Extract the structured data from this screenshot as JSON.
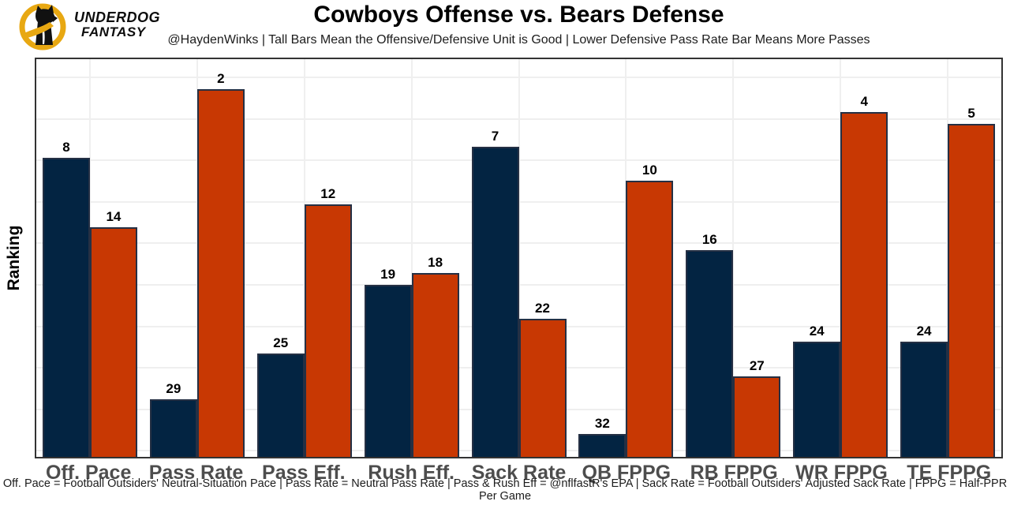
{
  "header": {
    "brand_line1": "UNDERDOG",
    "brand_line2": "FANTASY",
    "title": "Cowboys Offense vs. Bears Defense",
    "subtitle": "@HaydenWinks | Tall Bars Mean the Offensive/Defensive Unit is Good | Lower Defensive Pass Rate Bar Means More Passes"
  },
  "footer": {
    "text": "Off. Pace = Football Outsiders' Neutral-Situation Pace | Pass Rate = Neutral Pass Rate | Pass & Rush Eff = @nflfastR's EPA | Sack Rate = Football Outsiders' Adjusted Sack Rate | FPPG = Half-PPR Per Game"
  },
  "chart_data": {
    "type": "bar",
    "title": "Cowboys Offense vs. Bears Defense",
    "ylabel": "Ranking",
    "xlabel": "",
    "categories": [
      "Off. Pace",
      "Pass Rate",
      "Pass Eff.",
      "Rush Eff.",
      "Sack Rate",
      "QB FPPG",
      "RB FPPG",
      "WR FPPG",
      "TE FPPG"
    ],
    "series": [
      {
        "name": "Cowboys Offense",
        "color": "#032442",
        "values": [
          8,
          29,
          25,
          19,
          7,
          32,
          16,
          24,
          24
        ]
      },
      {
        "name": "Bears Defense",
        "color": "#C83803",
        "values": [
          14,
          2,
          12,
          18,
          22,
          10,
          27,
          4,
          5
        ]
      }
    ],
    "value_type": "NFL ranking (1 = best of 32); taller bar = better unit",
    "rank_range": [
      1,
      32
    ],
    "data_labels": true,
    "grid": true,
    "legend": "none"
  },
  "colors": {
    "navy": "#032442",
    "orange": "#C83803",
    "bar_outline": "#253044",
    "gridline": "#efefef",
    "plot_border": "#333333",
    "axis_label_gray": "#4d4d4d",
    "brand_gold": "#E8A812"
  }
}
